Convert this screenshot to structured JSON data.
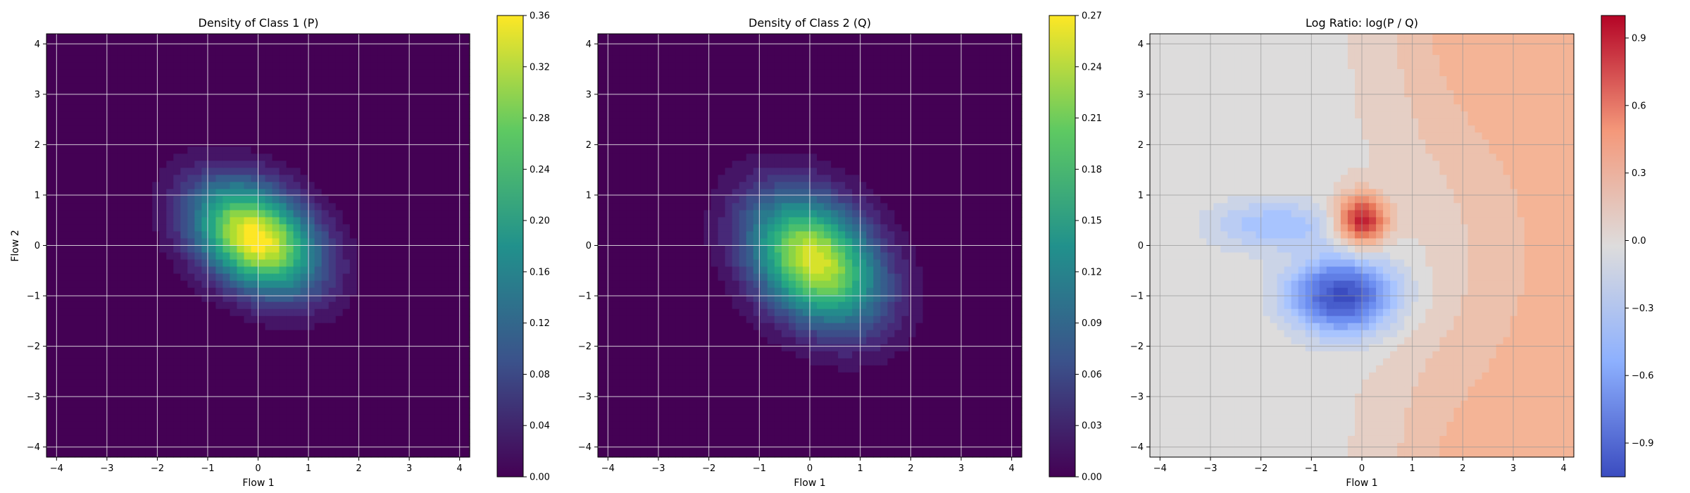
{
  "chart_data": [
    {
      "type": "heatmap",
      "title": "Density of Class 1 (P)",
      "xlabel": "Flow 1",
      "ylabel": "Flow 2",
      "xlim": [
        -4.2,
        4.2
      ],
      "ylim": [
        -4.2,
        4.2
      ],
      "xticks": [
        -4,
        -3,
        -2,
        -1,
        0,
        1,
        2,
        3,
        4
      ],
      "yticks": [
        -4,
        -3,
        -2,
        -1,
        0,
        1,
        2,
        3,
        4
      ],
      "grid": true,
      "colormap": "viridis",
      "colorbar": {
        "min": 0.0,
        "max": 0.36,
        "ticks": [
          "0.00",
          "0.04",
          "0.08",
          "0.12",
          "0.16",
          "0.20",
          "0.24",
          "0.28",
          "0.32",
          "0.36"
        ]
      },
      "field": {
        "kind": "gaussian",
        "center": [
          -0.05,
          0.15
        ],
        "sigma_major": 0.95,
        "sigma_minor": 0.65,
        "angle_deg": -35,
        "peak": 0.36
      }
    },
    {
      "type": "heatmap",
      "title": "Density of Class 2 (Q)",
      "xlabel": "Flow 1",
      "ylabel": "",
      "xlim": [
        -4.2,
        4.2
      ],
      "ylim": [
        -4.2,
        4.2
      ],
      "xticks": [
        -4,
        -3,
        -2,
        -1,
        0,
        1,
        2,
        3,
        4
      ],
      "yticks": [
        -4,
        -3,
        -2,
        -1,
        0,
        1,
        2,
        3,
        4
      ],
      "grid": true,
      "colormap": "viridis",
      "colorbar": {
        "min": 0.0,
        "max": 0.27,
        "ticks": [
          "0.00",
          "0.03",
          "0.06",
          "0.09",
          "0.12",
          "0.15",
          "0.18",
          "0.21",
          "0.24",
          "0.27"
        ]
      },
      "field": {
        "kind": "gaussian",
        "center": [
          0.1,
          -0.3
        ],
        "sigma_major": 1.05,
        "sigma_minor": 0.75,
        "angle_deg": -45,
        "peak": 0.25
      }
    },
    {
      "type": "heatmap",
      "title": "Log Ratio: log(P / Q)",
      "xlabel": "Flow 1",
      "ylabel": "",
      "xlim": [
        -4.2,
        4.2
      ],
      "ylim": [
        -4.2,
        4.2
      ],
      "xticks": [
        -4,
        -3,
        -2,
        -1,
        0,
        1,
        2,
        3,
        4
      ],
      "yticks": [
        -4,
        -3,
        -2,
        -1,
        0,
        1,
        2,
        3,
        4
      ],
      "grid": true,
      "colormap": "coolwarm",
      "colorbar": {
        "min": -1.05,
        "max": 1.0,
        "ticks": [
          "−0.9",
          "−0.6",
          "−0.3",
          "0.0",
          "0.3",
          "0.6",
          "0.9"
        ],
        "tick_values": [
          -0.9,
          -0.6,
          -0.3,
          0.0,
          0.3,
          0.6,
          0.9
        ]
      },
      "features": {
        "positive_peak": {
          "center": [
            0.0,
            0.5
          ],
          "value": 0.9
        },
        "negative_peak": {
          "center": [
            -0.4,
            -1.0
          ],
          "value": -1.0
        },
        "background_right": 0.3,
        "background_left": 0.0
      }
    }
  ]
}
